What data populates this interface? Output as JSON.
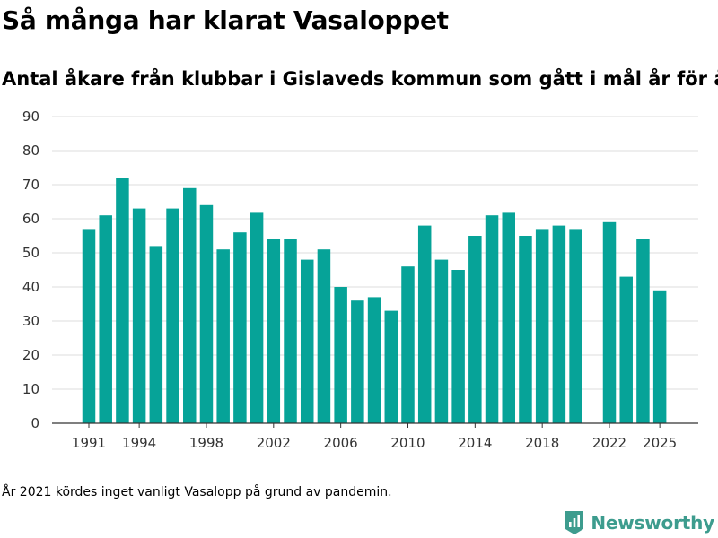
{
  "header": {
    "title": "Så många har klarat Vasaloppet",
    "subtitle": "Antal åkare från klubbar i Gislaveds kommun som gått i mål år för år."
  },
  "footer": {
    "note": "År 2021 kördes inget vanligt Vasalopp på grund av pandemin.",
    "brand": "Newsworthy",
    "brand_icon": "newsworthy-logo-icon"
  },
  "chart_data": {
    "type": "bar",
    "title": "Så många har klarat Vasaloppet",
    "subtitle": "Antal åkare från klubbar i Gislaveds kommun som gått i mål år för år.",
    "xlabel": "",
    "ylabel": "",
    "ylim": [
      0,
      90
    ],
    "yticks": [
      0,
      10,
      20,
      30,
      40,
      50,
      60,
      70,
      80,
      90
    ],
    "xticks": [
      "1991",
      "1994",
      "1998",
      "2002",
      "2006",
      "2010",
      "2014",
      "2018",
      "2022",
      "2025"
    ],
    "grid": true,
    "bar_color": "#06a398",
    "categories": [
      1991,
      1992,
      1993,
      1994,
      1995,
      1996,
      1997,
      1998,
      1999,
      2000,
      2001,
      2002,
      2003,
      2004,
      2005,
      2006,
      2007,
      2008,
      2009,
      2010,
      2011,
      2012,
      2013,
      2014,
      2015,
      2016,
      2017,
      2018,
      2019,
      2020,
      2021,
      2022,
      2023,
      2024,
      2025
    ],
    "values": [
      57,
      61,
      72,
      63,
      52,
      63,
      69,
      64,
      51,
      56,
      62,
      54,
      54,
      48,
      51,
      40,
      36,
      37,
      33,
      46,
      58,
      48,
      45,
      55,
      61,
      62,
      55,
      57,
      58,
      57,
      null,
      59,
      43,
      54,
      39
    ]
  }
}
